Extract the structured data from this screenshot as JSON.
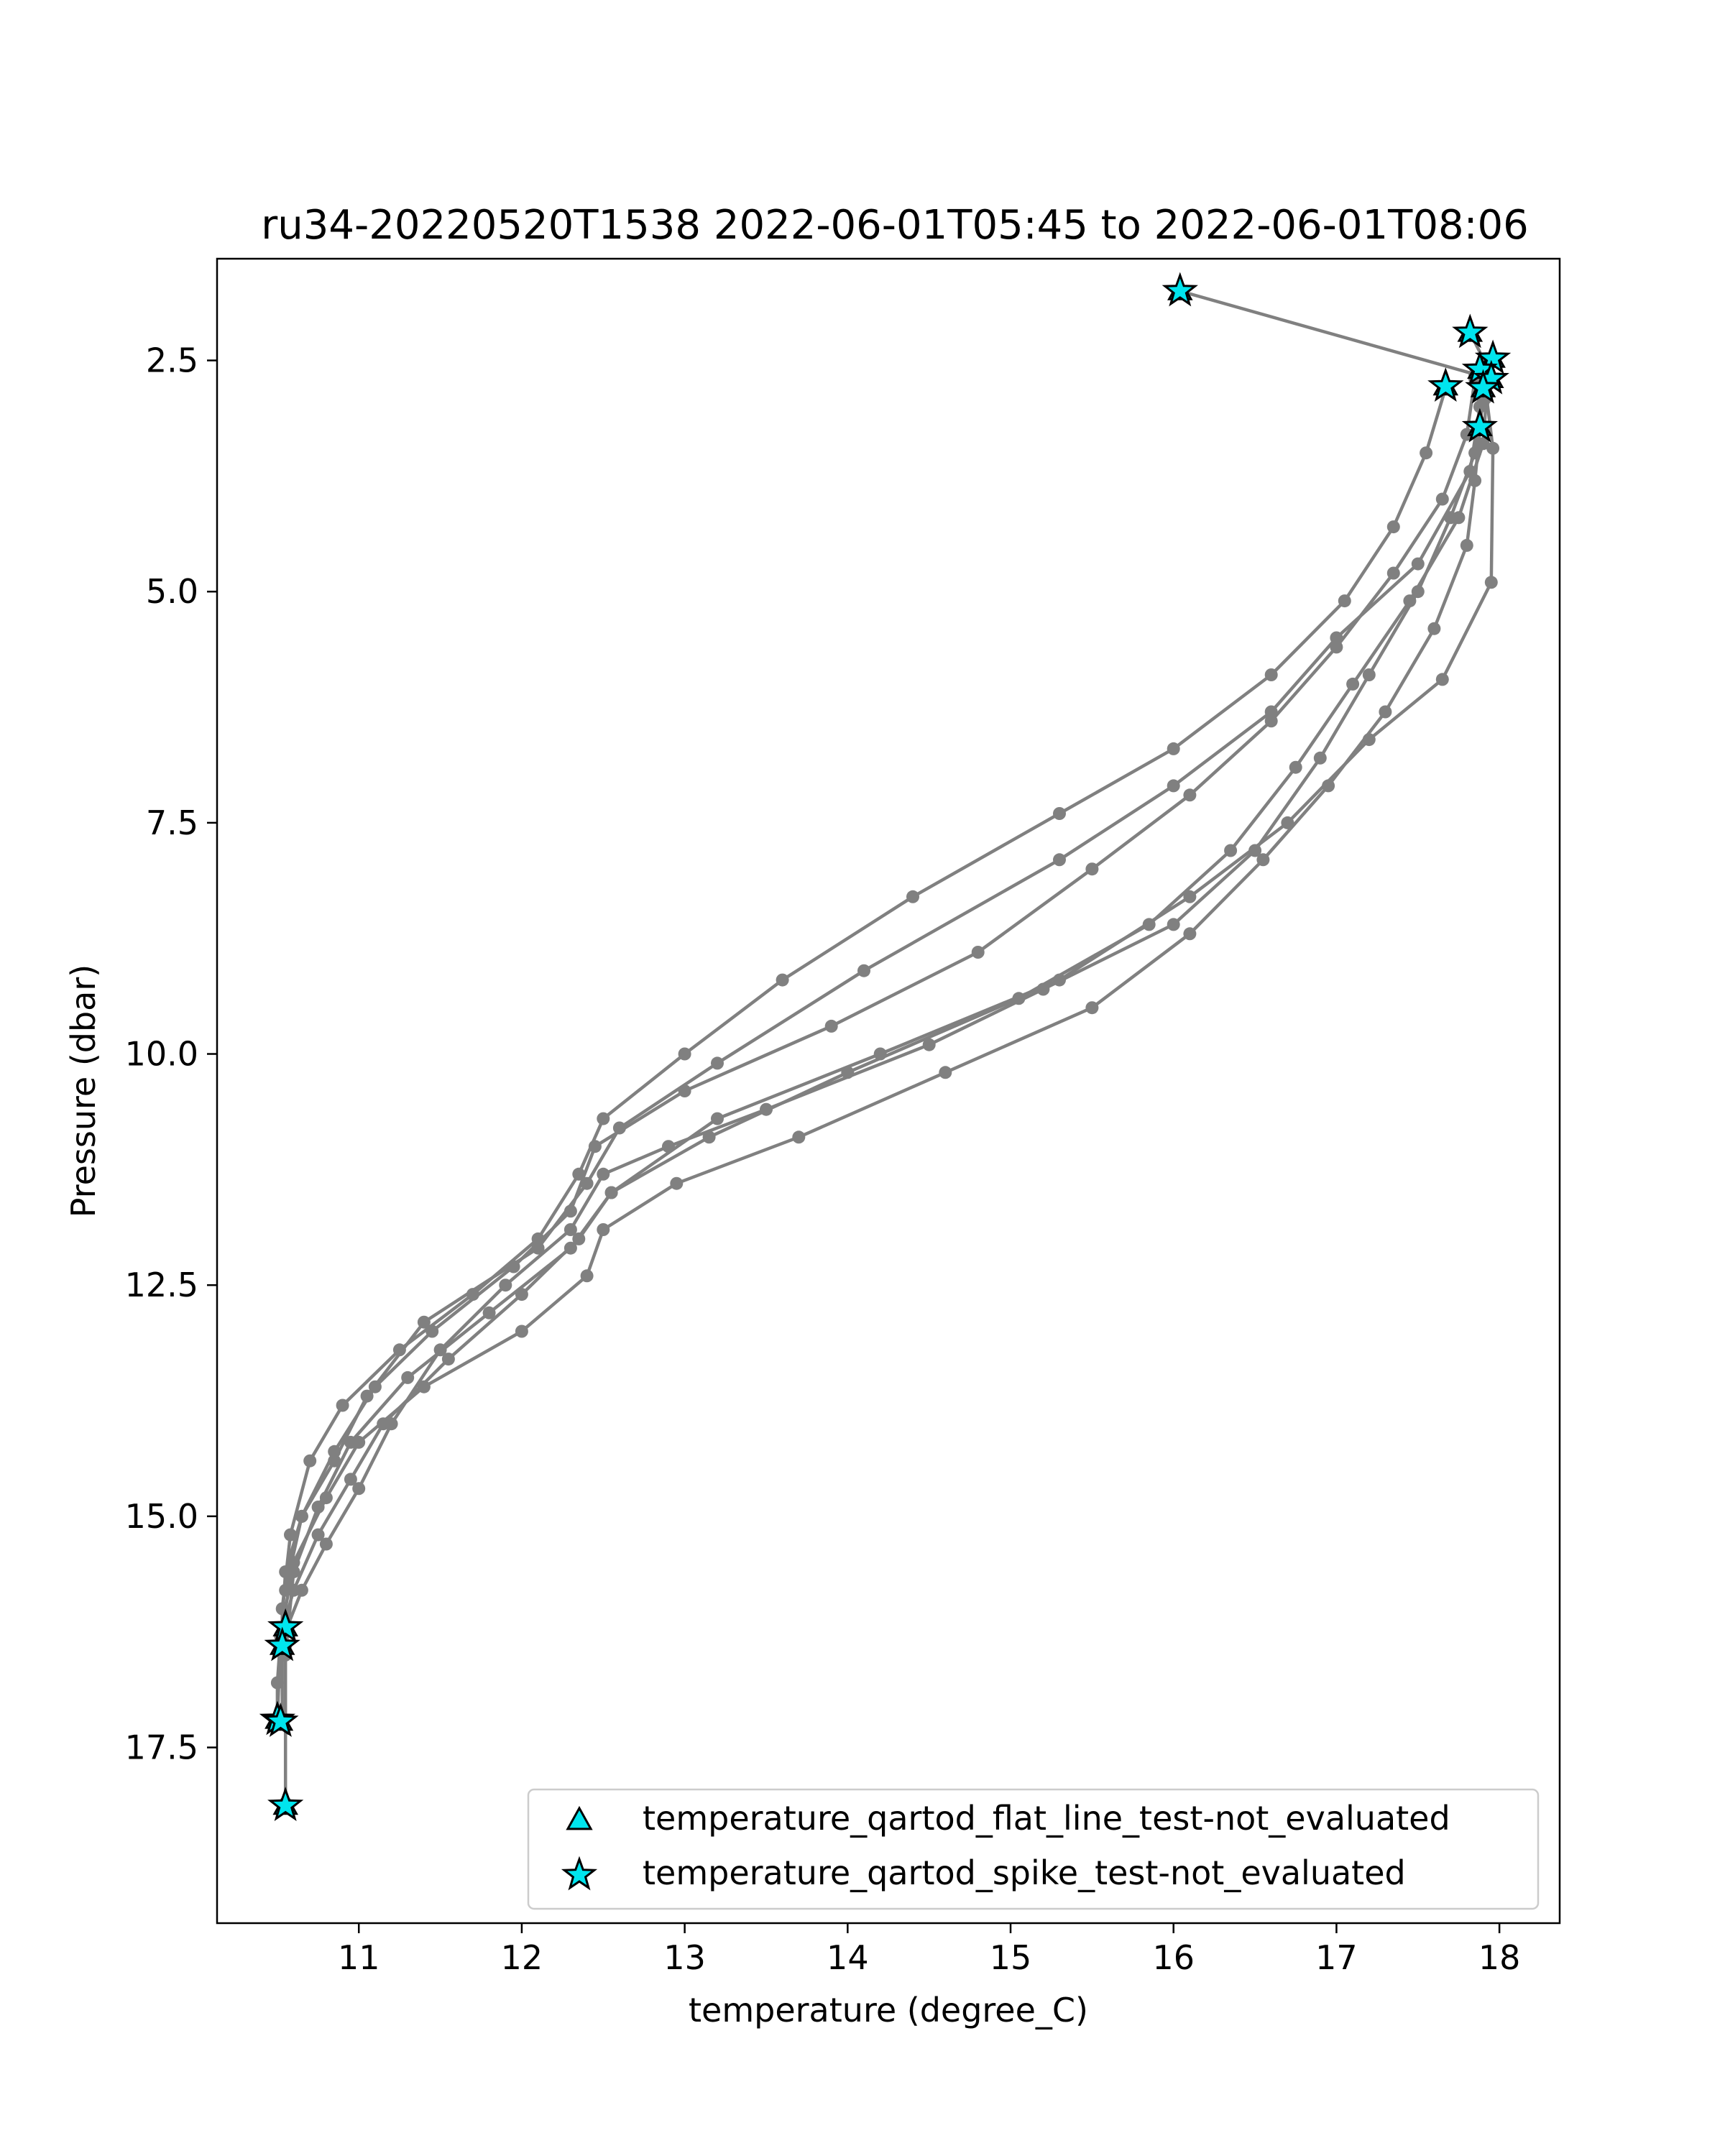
{
  "colors": {
    "profile_line": "#808080",
    "marker_fill": "#00e5ee",
    "marker_edge": "#000000",
    "axes": "#000000",
    "legend_border": "#cccccc"
  },
  "chart_data": {
    "type": "line",
    "title": "ru34-20220520T1538 2022-06-01T05:45 to 2022-06-01T08:06",
    "xlabel": "temperature (degree_C)",
    "ylabel": "Pressure (dbar)",
    "xlim": [
      10.13,
      18.37
    ],
    "ylim": [
      19.4,
      1.4
    ],
    "y_inverted": true,
    "grid": false,
    "legend_position": "lower-right",
    "x_ticks": [
      11,
      12,
      13,
      14,
      15,
      16,
      17,
      18
    ],
    "x_tick_labels": [
      "11",
      "12",
      "13",
      "14",
      "15",
      "16",
      "17",
      "18"
    ],
    "y_ticks": [
      2.5,
      5.0,
      7.5,
      10.0,
      12.5,
      15.0,
      17.5
    ],
    "y_tick_labels": [
      "2.5",
      "5.0",
      "7.5",
      "10.0",
      "12.5",
      "15.0",
      "17.5"
    ],
    "profiles": [
      {
        "x": [
          16.04,
          17.85,
          17.9,
          17.85,
          17.7,
          17.5,
          17.2,
          16.9,
          16.5,
          16.0,
          15.2,
          14.5,
          13.5,
          12.9,
          12.5,
          12.3,
          11.9,
          11.5,
          11.2,
          11.0,
          10.8,
          10.65,
          10.56,
          10.55
        ],
        "y": [
          1.75,
          2.65,
          2.95,
          3.5,
          4.2,
          5.0,
          5.9,
          6.8,
          7.8,
          8.6,
          9.3,
          9.9,
          10.6,
          11.0,
          11.3,
          11.9,
          12.5,
          13.2,
          14.0,
          14.7,
          15.3,
          15.8,
          16.2,
          16.4
        ]
      },
      {
        "x": [
          17.82,
          17.92,
          17.88,
          17.82,
          17.5,
          17.0,
          16.6,
          16.0,
          15.3,
          14.1,
          13.2,
          12.6,
          12.4,
          12.1,
          11.4,
          11.05,
          10.85,
          10.65,
          10.55,
          10.52
        ],
        "y": [
          2.2,
          2.55,
          3.0,
          3.7,
          4.7,
          5.5,
          6.3,
          7.1,
          7.9,
          9.1,
          10.1,
          10.8,
          11.4,
          12.1,
          12.9,
          13.7,
          14.4,
          15.0,
          15.6,
          16.4
        ]
      },
      {
        "x": [
          17.96,
          17.92,
          17.9,
          17.75,
          17.45,
          17.1,
          16.75,
          16.35,
          15.85,
          15.05,
          14.0,
          13.15,
          12.55,
          12.35,
          12.0,
          11.55,
          11.15,
          10.95,
          10.75,
          10.6,
          10.52,
          10.5,
          10.5
        ],
        "y": [
          2.5,
          2.9,
          3.4,
          4.2,
          5.1,
          6.0,
          6.9,
          7.8,
          8.6,
          9.4,
          10.2,
          10.9,
          11.5,
          12.0,
          12.6,
          13.3,
          14.0,
          14.6,
          15.2,
          15.8,
          16.3,
          16.8,
          17.2
        ]
      },
      {
        "x": [
          17.88,
          17.85,
          17.8,
          17.6,
          17.3,
          16.95,
          16.55,
          16.1,
          15.5,
          14.6,
          13.7,
          12.95,
          12.5,
          12.4,
          12.0,
          11.4,
          11.0,
          10.8,
          10.6,
          10.52,
          10.5
        ],
        "y": [
          3.25,
          3.8,
          4.5,
          5.4,
          6.3,
          7.1,
          7.9,
          8.7,
          9.5,
          10.2,
          10.9,
          11.4,
          11.9,
          12.4,
          13.0,
          13.6,
          14.2,
          14.8,
          15.5,
          16.3,
          17.2
        ]
      },
      {
        "x": [
          17.67,
          17.55,
          17.35,
          17.05,
          16.6,
          16.0,
          15.3,
          14.4,
          13.6,
          13.0,
          12.5,
          12.35,
          12.1,
          11.7,
          11.25,
          10.9,
          10.7,
          10.58,
          10.53,
          10.53
        ],
        "y": [
          2.8,
          3.5,
          4.3,
          5.1,
          5.9,
          6.7,
          7.4,
          8.3,
          9.2,
          10.0,
          10.7,
          11.3,
          12.0,
          12.6,
          13.2,
          13.8,
          14.4,
          15.2,
          16.0,
          17.2
        ]
      },
      {
        "x": [
          17.9,
          17.96,
          17.95,
          17.65,
          17.2,
          16.7,
          16.1,
          15.3,
          14.2,
          13.2,
          12.55,
          12.3,
          11.8,
          11.3,
          10.95,
          10.75,
          10.6,
          10.55,
          10.55
        ],
        "y": [
          2.6,
          3.45,
          4.9,
          5.95,
          6.6,
          7.5,
          8.3,
          9.2,
          10.0,
          10.7,
          11.5,
          12.1,
          12.8,
          13.5,
          14.2,
          14.9,
          15.6,
          16.5,
          18.1
        ]
      },
      {
        "x": [
          17.85,
          17.8,
          17.65,
          17.35,
          17.0,
          16.6,
          16.1,
          15.5,
          14.8,
          13.9,
          13.0,
          12.45,
          12.3,
          11.95,
          11.45,
          11.1,
          10.85,
          10.65,
          10.55
        ],
        "y": [
          2.7,
          3.3,
          4.0,
          4.8,
          5.6,
          6.4,
          7.2,
          8.0,
          8.9,
          9.7,
          10.4,
          11.0,
          11.7,
          12.3,
          13.0,
          13.6,
          14.3,
          15.0,
          15.8
        ]
      }
    ],
    "series": [
      {
        "name": "temperature_qartod_flat_line_test-not_evaluated",
        "marker": "triangle",
        "x": [
          16.04,
          17.82,
          17.96,
          17.88,
          17.95,
          17.67,
          17.9,
          17.88,
          10.55,
          10.53,
          10.5,
          10.52,
          10.55
        ],
        "y": [
          1.75,
          2.2,
          2.48,
          2.6,
          2.7,
          2.78,
          2.8,
          3.22,
          16.2,
          16.4,
          17.2,
          17.22,
          18.13
        ]
      },
      {
        "name": "temperature_qartod_spike_test-not_evaluated",
        "marker": "star",
        "x": [
          16.04,
          17.82,
          17.96,
          17.88,
          17.95,
          17.67,
          17.9,
          17.88,
          10.55,
          10.53,
          10.5,
          10.52,
          10.55
        ],
        "y": [
          1.75,
          2.2,
          2.48,
          2.6,
          2.7,
          2.78,
          2.8,
          3.22,
          16.2,
          16.4,
          17.2,
          17.22,
          18.13
        ]
      }
    ]
  }
}
